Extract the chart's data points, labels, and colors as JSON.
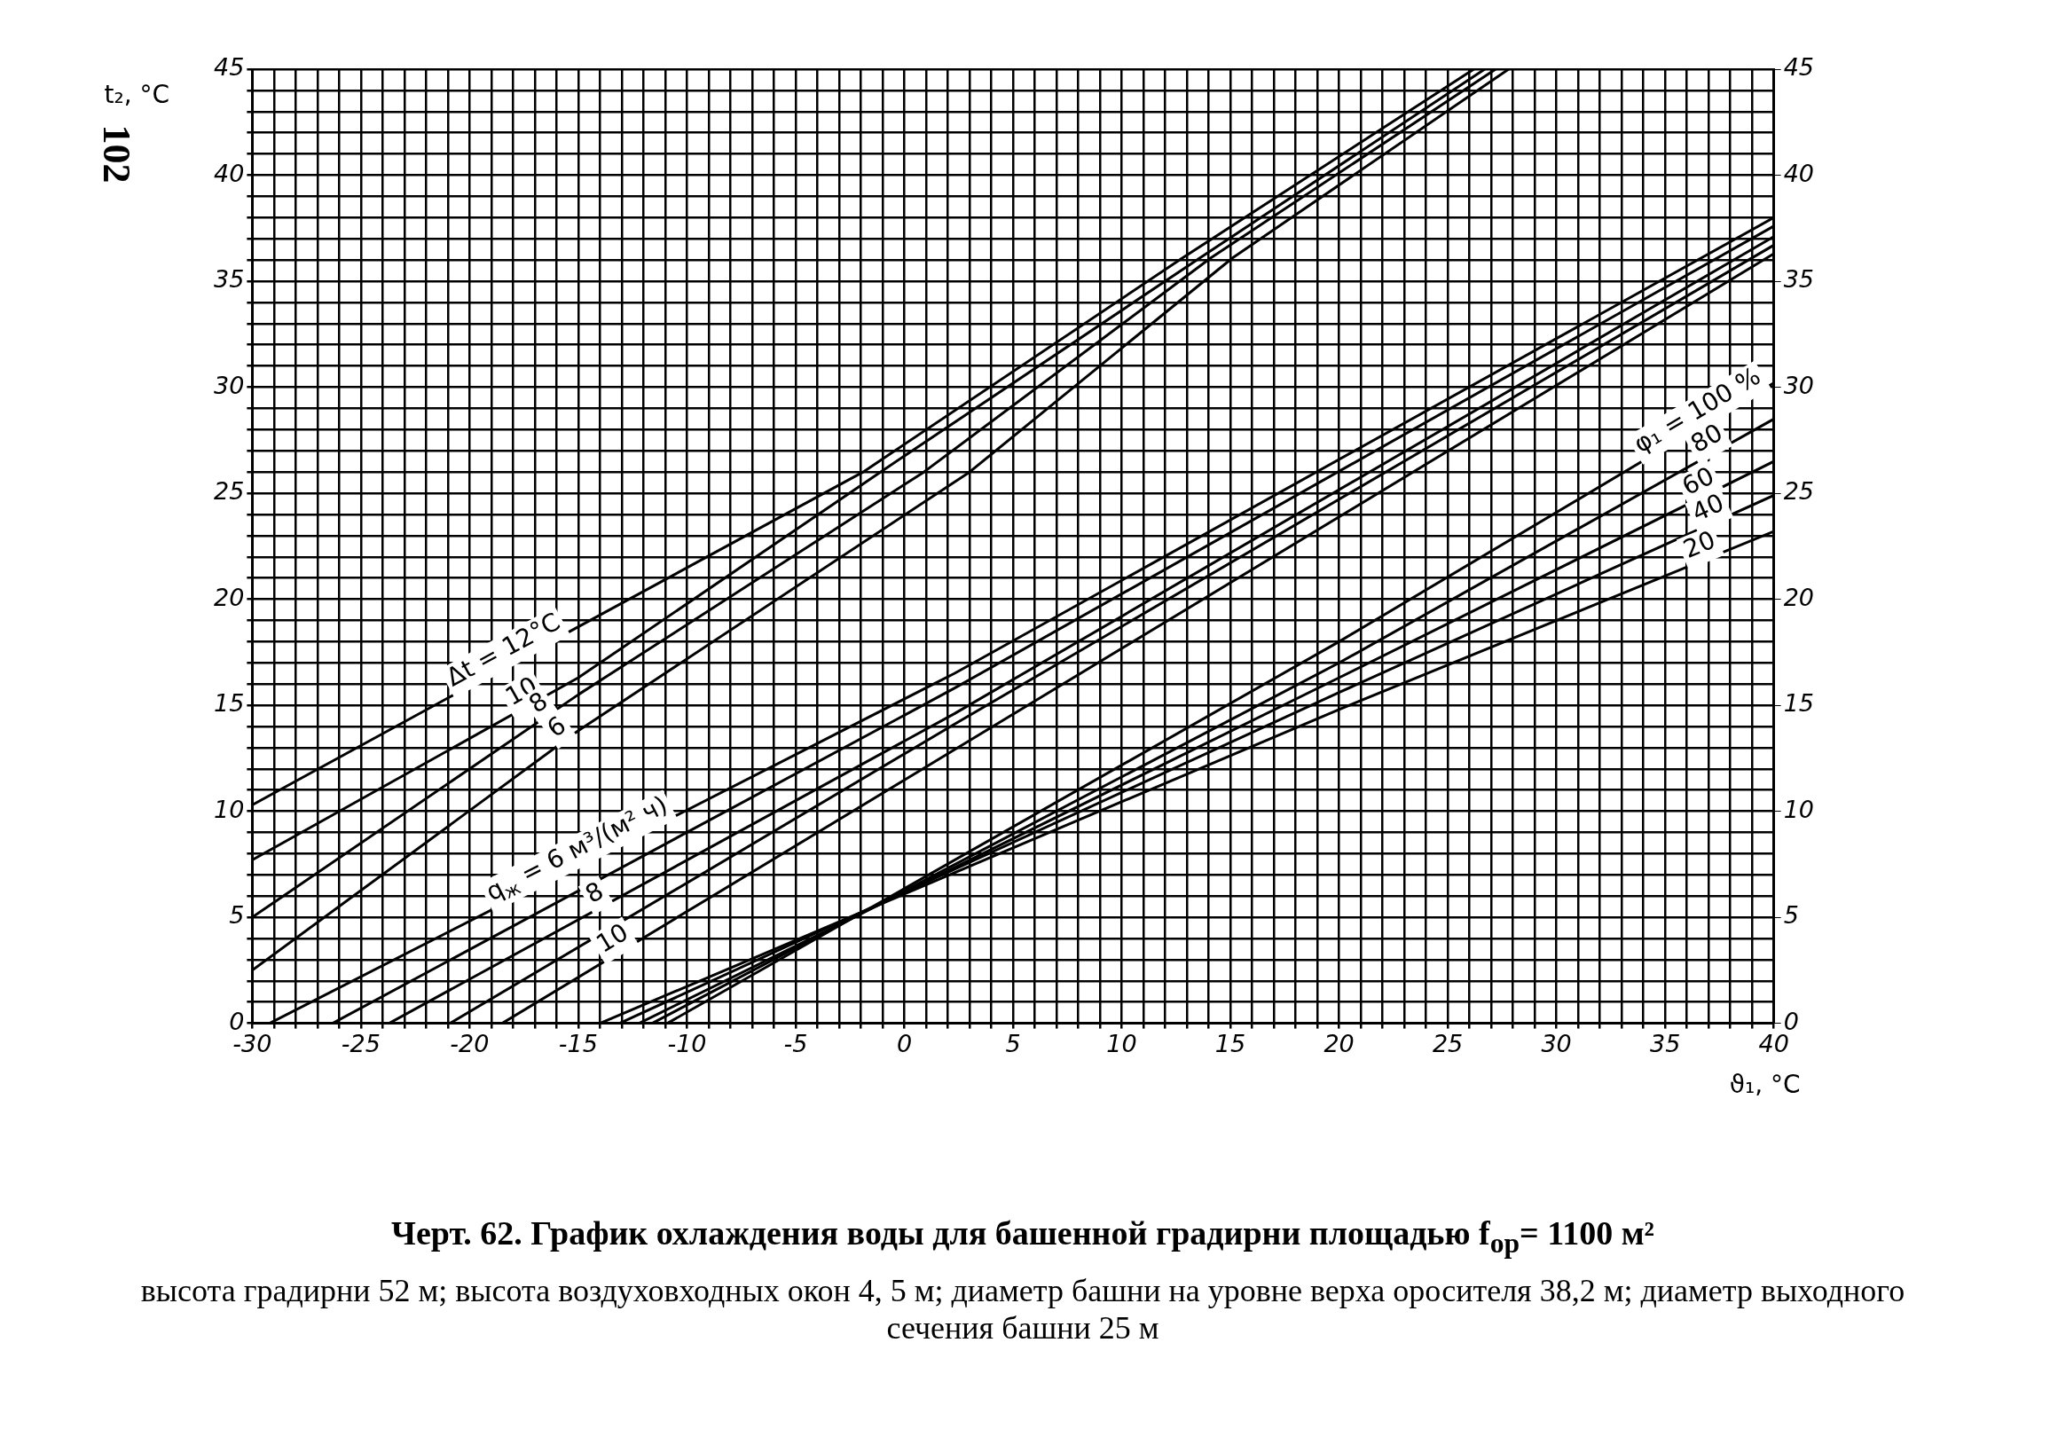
{
  "chart_data": {
    "type": "line",
    "title": "Черт. 62. График охлаждения воды для башенной градирни площадью f$_{ор}$= 1100 м²",
    "subtitle": "высота градирни 52 м; высота воздуховходных окон 4, 5 м; диаметр башни на уровне верха оросителя 38,2 м; диаметр выходного сечения башни 25 м",
    "xlabel": "ϑ₁, °C",
    "ylabel": "t₂, °C",
    "xlim": [
      -30,
      40
    ],
    "ylim": [
      0,
      45
    ],
    "y2lim": [
      0,
      45
    ],
    "xticks": [
      -30,
      {
        "value": -29,
        "label": null
      },
      {
        "value": -28,
        "label": null
      },
      {
        "value": -27,
        "label": null
      },
      {
        "value": -26,
        "label": null
      },
      -25,
      {
        "value": -24,
        "label": null
      },
      {
        "value": -23,
        "label": null
      },
      {
        "value": -22,
        "label": null
      },
      {
        "value": -21,
        "label": null
      },
      -20,
      {
        "value": -19,
        "label": null
      },
      {
        "value": -18,
        "label": null
      },
      {
        "value": -17,
        "label": null
      },
      {
        "value": -16,
        "label": null
      },
      -15,
      {
        "value": -14,
        "label": null
      },
      {
        "value": -13,
        "label": null
      },
      {
        "value": -12,
        "label": null
      },
      {
        "value": -11,
        "label": null
      },
      -10,
      {
        "value": -9,
        "label": null
      },
      {
        "value": -8,
        "label": null
      },
      {
        "value": -7,
        "label": null
      },
      {
        "value": -6,
        "label": null
      },
      -5,
      {
        "value": -4,
        "label": null
      },
      {
        "value": -3,
        "label": null
      },
      {
        "value": -2,
        "label": null
      },
      {
        "value": -1,
        "label": null
      },
      0,
      {
        "value": 1,
        "label": null
      },
      {
        "value": 2,
        "label": null
      },
      {
        "value": 3,
        "label": null
      },
      {
        "value": 4,
        "label": null
      },
      5,
      {
        "value": 6,
        "label": null
      },
      {
        "value": 7,
        "label": null
      },
      {
        "value": 8,
        "label": null
      },
      {
        "value": 9,
        "label": null
      },
      10,
      {
        "value": 11,
        "label": null
      },
      {
        "value": 12,
        "label": null
      },
      {
        "value": 13,
        "label": null
      },
      {
        "value": 14,
        "label": null
      },
      15,
      {
        "value": 16,
        "label": null
      },
      {
        "value": 17,
        "label": null
      },
      {
        "value": 18,
        "label": null
      },
      {
        "value": 19,
        "label": null
      },
      20,
      {
        "value": 21,
        "label": null
      },
      {
        "value": 22,
        "label": null
      },
      {
        "value": 23,
        "label": null
      },
      {
        "value": 24,
        "label": null
      },
      25,
      {
        "value": 26,
        "label": null
      },
      {
        "value": 27,
        "label": null
      },
      {
        "value": 28,
        "label": null
      },
      {
        "value": 29,
        "label": null
      },
      30,
      {
        "value": 31,
        "label": null
      },
      {
        "value": 32,
        "label": null
      },
      {
        "value": 33,
        "label": null
      },
      {
        "value": 34,
        "label": null
      },
      35,
      {
        "value": 36,
        "label": null
      },
      {
        "value": 37,
        "label": null
      },
      {
        "value": 38,
        "label": null
      },
      {
        "value": 39,
        "label": null
      },
      40
    ],
    "yticks": [
      0,
      {
        "value": 1,
        "label": null
      },
      {
        "value": 2,
        "label": null
      },
      {
        "value": 3,
        "label": null
      },
      {
        "value": 4,
        "label": null
      },
      5,
      {
        "value": 6,
        "label": null
      },
      {
        "value": 7,
        "label": null
      },
      {
        "value": 8,
        "label": null
      },
      {
        "value": 9,
        "label": null
      },
      10,
      {
        "value": 11,
        "label": null
      },
      {
        "value": 12,
        "label": null
      },
      {
        "value": 13,
        "label": null
      },
      {
        "value": 14,
        "label": null
      },
      15,
      {
        "value": 16,
        "label": null
      },
      {
        "value": 17,
        "label": null
      },
      {
        "value": 18,
        "label": null
      },
      {
        "value": 19,
        "label": null
      },
      20,
      {
        "value": 21,
        "label": null
      },
      {
        "value": 22,
        "label": null
      },
      {
        "value": 23,
        "label": null
      },
      {
        "value": 24,
        "label": null
      },
      25,
      {
        "value": 26,
        "label": null
      },
      {
        "value": 27,
        "label": null
      },
      {
        "value": 28,
        "label": null
      },
      {
        "value": 29,
        "label": null
      },
      30,
      {
        "value": 31,
        "label": null
      },
      {
        "value": 32,
        "label": null
      },
      {
        "value": 33,
        "label": null
      },
      {
        "value": 34,
        "label": null
      },
      35,
      {
        "value": 36,
        "label": null
      },
      {
        "value": 37,
        "label": null
      },
      {
        "value": 38,
        "label": null
      },
      {
        "value": 39,
        "label": null
      },
      40,
      {
        "value": 41,
        "label": null
      },
      {
        "value": 42,
        "label": null
      },
      {
        "value": 43,
        "label": null
      },
      {
        "value": 44,
        "label": null
      },
      45
    ],
    "y2ticks": [
      0,
      5,
      10,
      15,
      20,
      25,
      30,
      35,
      40,
      45
    ],
    "grid": true,
    "legend": false,
    "marker": "none",
    "line_style": "solid",
    "series": [
      {
        "name": "Δt = 12°C",
        "color": "#000000",
        "x": [
          -30,
          -15,
          -1.9,
          12.8,
          26.2
        ],
        "values": [
          10.3,
          18.7,
          26,
          36.1,
          45
        ]
      },
      {
        "name": "10",
        "color": "#000000",
        "x": [
          -30,
          -15,
          -1.1,
          13.6,
          26.7
        ],
        "values": [
          7.7,
          16.3,
          26,
          36.1,
          45
        ]
      },
      {
        "name": "8",
        "color": "#000000",
        "x": [
          -30,
          -15,
          0.9,
          14.1,
          27.2
        ],
        "values": [
          5.0,
          15.5,
          26,
          36.1,
          45
        ]
      },
      {
        "name": "6",
        "color": "#000000",
        "x": [
          -30,
          -15,
          3.0,
          15.1,
          27.8
        ],
        "values": [
          2.5,
          13.8,
          26,
          36.1,
          45
        ]
      },
      {
        "name": "q$_{ж}$ = 6 м³/(м² ч)",
        "color": "#000000",
        "x": [
          -29.2,
          2.3,
          40
        ],
        "values": [
          0,
          16.5,
          38.0
        ]
      },
      {
        "color": "#000000",
        "x": [
          -26.3,
          2.3,
          40
        ],
        "values": [
          0,
          15.8,
          37.6
        ]
      },
      {
        "name": "8",
        "color": "#000000",
        "x": [
          -23.7,
          2.3,
          40
        ],
        "values": [
          0,
          14.6,
          37.1
        ]
      },
      {
        "color": "#000000",
        "x": [
          -20.9,
          2.3,
          40
        ],
        "values": [
          0,
          14.1,
          36.7
        ]
      },
      {
        "name": "10",
        "color": "#000000",
        "x": [
          -18.5,
          2.3,
          40
        ],
        "values": [
          0,
          12.9,
          36.3
        ]
      },
      {
        "name": "φ₁ = 100 %",
        "color": "#000000",
        "x": [
          -10.9,
          20,
          40
        ],
        "values": [
          0,
          18.0,
          30.2
        ]
      },
      {
        "name": "80",
        "color": "#000000",
        "x": [
          -11.6,
          20,
          40
        ],
        "values": [
          0,
          17.0,
          28.5
        ]
      },
      {
        "name": "60",
        "color": "#000000",
        "x": [
          -12.2,
          20,
          40
        ],
        "values": [
          0,
          16.3,
          26.5
        ]
      },
      {
        "name": "40",
        "color": "#000000",
        "x": [
          -13.1,
          20,
          40
        ],
        "values": [
          0,
          15.6,
          24.9
        ]
      },
      {
        "name": "20",
        "color": "#000000",
        "x": [
          -14.0,
          20,
          40
        ],
        "values": [
          0,
          14.8,
          23.2
        ]
      }
    ],
    "annotations": [
      "102"
    ]
  }
}
